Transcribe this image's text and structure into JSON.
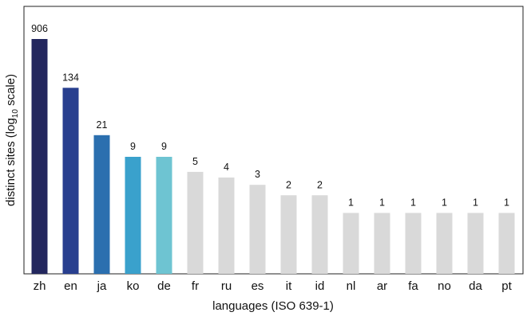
{
  "chart_data": {
    "type": "bar",
    "title": "",
    "xlabel": "languages (ISO 639-1)",
    "ylabel": {
      "prefix": "distinct sites (log",
      "subscript": "10",
      "suffix": " scale)"
    },
    "yscale": "log10",
    "ylim": [
      1.2,
      906
    ],
    "grid": false,
    "legend": "none",
    "categories": [
      "zh",
      "en",
      "ja",
      "ko",
      "de",
      "fr",
      "ru",
      "es",
      "it",
      "id",
      "nl",
      "ar",
      "fa",
      "no",
      "da",
      "pt"
    ],
    "values": [
      906,
      134,
      21,
      9,
      9,
      5,
      4,
      3,
      2,
      2,
      1,
      1,
      1,
      1,
      1,
      1
    ],
    "value_labels": [
      "906",
      "134",
      "21",
      "9",
      "9",
      "5",
      "4",
      "3",
      "2",
      "2",
      "1",
      "1",
      "1",
      "1",
      "1",
      "1"
    ],
    "colors": [
      "#23275e",
      "#283f8f",
      "#2b6faf",
      "#3aa1cc",
      "#6ec4d2",
      "#d9d9d9",
      "#d9d9d9",
      "#d9d9d9",
      "#d9d9d9",
      "#d9d9d9",
      "#d9d9d9",
      "#d9d9d9",
      "#d9d9d9",
      "#d9d9d9",
      "#d9d9d9",
      "#d9d9d9"
    ]
  }
}
